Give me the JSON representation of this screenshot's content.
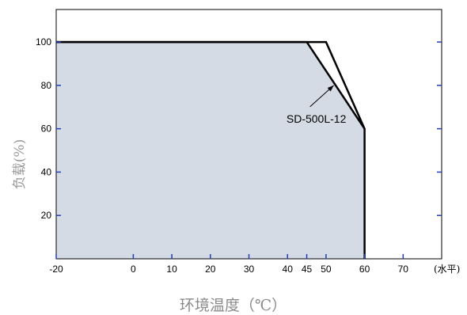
{
  "chart_data": {
    "type": "area",
    "xlabel": "环境温度（℃）",
    "ylabel": "负载(%)",
    "x_unit": "(水平)",
    "xlim": [
      -20,
      80
    ],
    "ylim": [
      0,
      115
    ],
    "x_ticks": [
      -20,
      0,
      10,
      20,
      30,
      40,
      45,
      50,
      60,
      70
    ],
    "y_ticks": [
      20,
      40,
      60,
      80,
      100
    ],
    "grid": false,
    "colors": {
      "fill": "#d5dbe5",
      "line": "#000000",
      "tick": "#1f3fbf"
    },
    "series": [
      {
        "name": "SD-500L-12",
        "x": [
          -20,
          45,
          60,
          60
        ],
        "y": [
          100,
          100,
          60,
          0
        ]
      },
      {
        "x": [
          -20,
          50,
          60
        ],
        "y": [
          100,
          100,
          60
        ]
      }
    ],
    "annotation": {
      "text": "SD-500L-12",
      "x": 52,
      "y": 80
    }
  }
}
